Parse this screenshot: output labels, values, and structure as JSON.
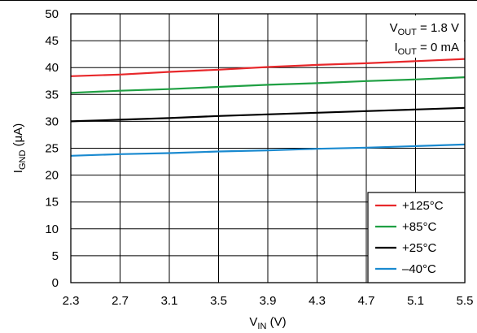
{
  "chart_data": {
    "type": "line",
    "xlabel": {
      "main": "V",
      "sub": "IN",
      "unit": " (V)"
    },
    "ylabel": {
      "main": "I",
      "sub": "GND",
      "unit": " (μA)"
    },
    "xlim": [
      2.3,
      5.5
    ],
    "ylim": [
      0,
      50
    ],
    "x_ticks": [
      "2.3",
      "2.7",
      "3.1",
      "3.5",
      "3.9",
      "4.3",
      "4.7",
      "5.1",
      "5.5"
    ],
    "y_ticks": [
      "0",
      "5",
      "10",
      "15",
      "20",
      "25",
      "30",
      "35",
      "40",
      "45",
      "50"
    ],
    "grid": true,
    "legend_position": "bottom-right",
    "annotations": [
      {
        "main": "V",
        "sub": "OUT",
        "rest": " = 1.8 V"
      },
      {
        "main": "I",
        "sub": "OUT",
        "rest": " = 0 mA"
      }
    ],
    "series": [
      {
        "name": "+125°C",
        "color": "#e8282b",
        "x": [
          2.3,
          2.7,
          3.1,
          3.5,
          3.9,
          4.3,
          4.7,
          5.1,
          5.5
        ],
        "y": [
          38.4,
          38.7,
          39.2,
          39.6,
          40.1,
          40.5,
          40.8,
          41.2,
          41.6
        ]
      },
      {
        "name": "+85°C",
        "color": "#1fa043",
        "x": [
          2.3,
          2.7,
          3.1,
          3.5,
          3.9,
          4.3,
          4.7,
          5.1,
          5.5
        ],
        "y": [
          35.3,
          35.7,
          36.0,
          36.4,
          36.8,
          37.1,
          37.5,
          37.8,
          38.2
        ]
      },
      {
        "name": "+25°C",
        "color": "#000000",
        "x": [
          2.3,
          2.7,
          3.1,
          3.5,
          3.9,
          4.3,
          4.7,
          5.1,
          5.5
        ],
        "y": [
          30.0,
          30.3,
          30.6,
          31.0,
          31.3,
          31.6,
          31.9,
          32.2,
          32.5
        ]
      },
      {
        "name": "–40°C",
        "color": "#1a8ad0",
        "x": [
          2.3,
          2.7,
          3.1,
          3.5,
          3.9,
          4.3,
          4.7,
          5.1,
          5.5
        ],
        "y": [
          23.6,
          23.9,
          24.1,
          24.4,
          24.6,
          24.9,
          25.1,
          25.4,
          25.7
        ]
      }
    ]
  }
}
